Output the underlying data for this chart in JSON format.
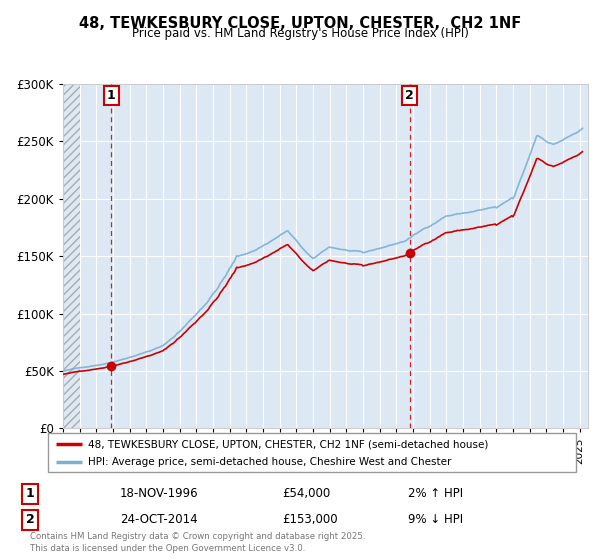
{
  "title": "48, TEWKESBURY CLOSE, UPTON, CHESTER,  CH2 1NF",
  "subtitle": "Price paid vs. HM Land Registry's House Price Index (HPI)",
  "legend_line1": "48, TEWKESBURY CLOSE, UPTON, CHESTER, CH2 1NF (semi-detached house)",
  "legend_line2": "HPI: Average price, semi-detached house, Cheshire West and Chester",
  "sale1_date": "18-NOV-1996",
  "sale1_price": 54000,
  "sale1_note": "2% ↑ HPI",
  "sale2_date": "24-OCT-2014",
  "sale2_price": 153000,
  "sale2_note": "9% ↓ HPI",
  "footer": "Contains HM Land Registry data © Crown copyright and database right 2025.\nThis data is licensed under the Open Government Licence v3.0.",
  "ylim": [
    0,
    300000
  ],
  "xlim_start": 1994.0,
  "xlim_end": 2025.5,
  "price_color": "#cc0000",
  "hpi_color": "#7bafd4",
  "bg_color": "#dce9f5",
  "sale1_x": 1996.89,
  "sale2_x": 2014.81
}
